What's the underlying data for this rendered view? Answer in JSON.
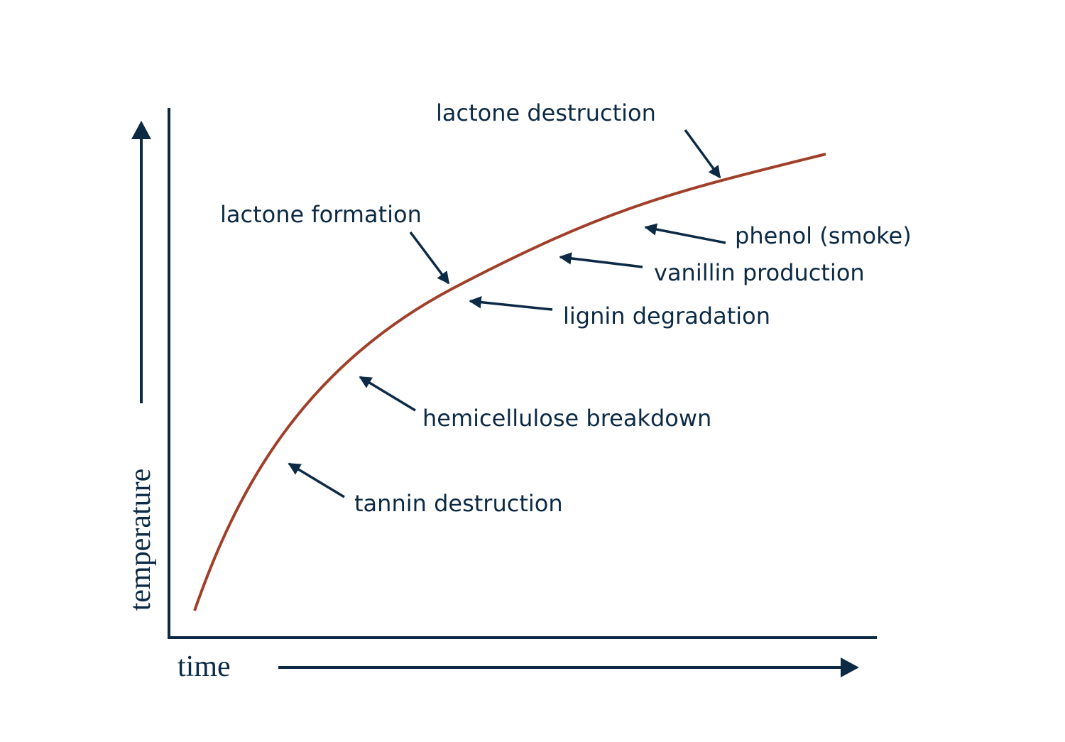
{
  "axes": {
    "y_label": "temperature",
    "x_label": "time"
  },
  "annotations": [
    "lactone destruction",
    "lactone formation",
    "phenol (smoke)",
    "vanillin production",
    "lignin degradation",
    "hemicellulose breakdown",
    "tannin destruction"
  ]
}
